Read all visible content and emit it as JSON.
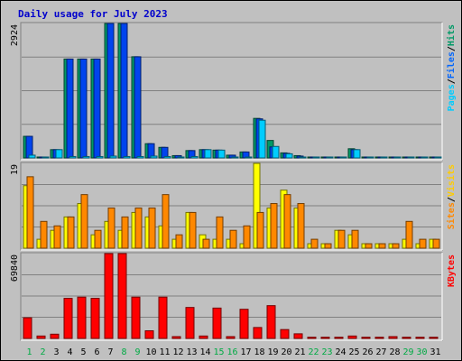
{
  "chart_data": {
    "type": "bar",
    "title": "Daily usage for July 2023",
    "categories": [
      "1",
      "2",
      "3",
      "4",
      "5",
      "6",
      "7",
      "8",
      "9",
      "10",
      "11",
      "12",
      "13",
      "14",
      "15",
      "16",
      "17",
      "18",
      "19",
      "20",
      "21",
      "22",
      "23",
      "24",
      "25",
      "26",
      "27",
      "28",
      "29",
      "30",
      "31"
    ],
    "weekend_days": [
      "1",
      "2",
      "8",
      "9",
      "15",
      "16",
      "22",
      "23",
      "29",
      "30"
    ],
    "panels": [
      {
        "id": "hits",
        "ymax_label": "2924",
        "ylim": [
          0,
          2924
        ],
        "legend": [
          {
            "name": "Hits",
            "color": "#009966"
          },
          {
            "name": "/",
            "color": "#000000"
          },
          {
            "name": "Files",
            "color": "#0066ff"
          },
          {
            "name": "/",
            "color": "#000000"
          },
          {
            "name": "Pages",
            "color": "#00ccff"
          }
        ],
        "series": [
          {
            "name": "Hits",
            "color": "#009966",
            "values": [
              470,
              20,
              180,
              2150,
              2150,
              2150,
              2924,
              2924,
              2200,
              310,
              230,
              50,
              160,
              180,
              170,
              60,
              130,
              860,
              380,
              110,
              50,
              20,
              20,
              20,
              200,
              20,
              20,
              20,
              20,
              20,
              20
            ]
          },
          {
            "name": "Files",
            "color": "#0044ee",
            "values": [
              470,
              20,
              180,
              2150,
              2150,
              2150,
              2924,
              2924,
              2200,
              310,
              230,
              50,
              160,
              180,
              170,
              60,
              130,
              850,
              240,
              100,
              40,
              20,
              20,
              20,
              180,
              20,
              20,
              20,
              20,
              20,
              20
            ]
          },
          {
            "name": "Pages",
            "color": "#00ccff",
            "values": [
              60,
              20,
              180,
              30,
              30,
              30,
              40,
              30,
              30,
              40,
              30,
              20,
              30,
              180,
              170,
              20,
              20,
              820,
              250,
              90,
              20,
              20,
              20,
              20,
              180,
              20,
              20,
              20,
              20,
              20,
              20
            ]
          }
        ]
      },
      {
        "id": "visits",
        "ymax_label": "19",
        "ylim": [
          0,
          19
        ],
        "legend": [
          {
            "name": "Visits",
            "color": "#ffcc00"
          },
          {
            "name": "/",
            "color": "#000000"
          },
          {
            "name": "Sites",
            "color": "#ff8800"
          }
        ],
        "series": [
          {
            "name": "Visits",
            "color": "#ffff00",
            "values": [
              14,
              2,
              4,
              7,
              10,
              3,
              6,
              4,
              8,
              7,
              5,
              2,
              8,
              3,
              2,
              2,
              1,
              19,
              9,
              13,
              9,
              1,
              1,
              4,
              3,
              1,
              1,
              1,
              2,
              1,
              2
            ]
          },
          {
            "name": "Sites",
            "color": "#ff8800",
            "values": [
              16,
              6,
              5,
              7,
              12,
              4,
              9,
              7,
              9,
              9,
              12,
              3,
              8,
              2,
              7,
              4,
              5,
              8,
              10,
              12,
              10,
              2,
              1,
              4,
              4,
              1,
              1,
              1,
              6,
              2,
              2
            ]
          }
        ]
      },
      {
        "id": "kbytes",
        "ymax_label": "69840",
        "ylim": [
          0,
          69840
        ],
        "legend": [
          {
            "name": "KBytes",
            "color": "#ff0000"
          }
        ],
        "series": [
          {
            "name": "KBytes",
            "color": "#ff0000",
            "values": [
              17000,
              2000,
              3500,
              33000,
              34000,
              33000,
              69840,
              69840,
              34000,
              6300,
              34000,
              1500,
              25500,
              2000,
              25000,
              1500,
              24000,
              9000,
              27000,
              7300,
              3800,
              1000,
              1000,
              1000,
              2000,
              1000,
              1000,
              1500,
              1000,
              1000,
              1000
            ]
          }
        ]
      }
    ]
  }
}
